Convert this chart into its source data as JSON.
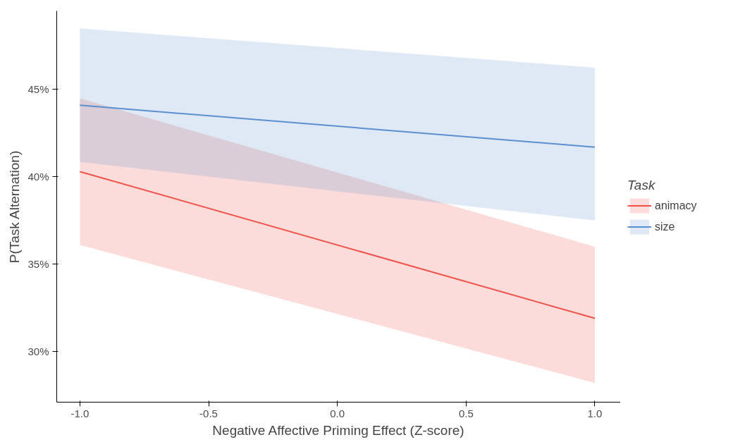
{
  "chart_data": {
    "type": "line",
    "xlabel": "Negative Affective Priming Effect (Z-score)",
    "ylabel": "P(Task Alternation)",
    "legend_title": "Task",
    "legend": "right",
    "grid": false,
    "x": [
      -1,
      1
    ],
    "xlim": [
      -1.09,
      1.1
    ],
    "ylim": [
      27.1,
      49.5
    ],
    "xticks": [
      {
        "value": -1,
        "label": "-1.0"
      },
      {
        "value": -0.5,
        "label": "-0.5"
      },
      {
        "value": 0,
        "label": "0.0"
      },
      {
        "value": 0.5,
        "label": "0.5"
      },
      {
        "value": 1,
        "label": "1.0"
      }
    ],
    "yticks": [
      {
        "value": 30,
        "label": "30%"
      },
      {
        "value": 35,
        "label": "35%"
      },
      {
        "value": 40,
        "label": "40%"
      },
      {
        "value": 45,
        "label": "45%"
      }
    ],
    "series": [
      {
        "name": "animacy",
        "color": "#f0524b",
        "values": [
          40.3,
          31.9
        ],
        "lower": [
          36.1,
          28.2
        ],
        "upper": [
          44.5,
          36.0
        ]
      },
      {
        "name": "size",
        "color": "#5b8fcf",
        "values": [
          44.1,
          41.7
        ],
        "lower": [
          40.85,
          37.5
        ],
        "upper": [
          48.5,
          46.25
        ]
      }
    ]
  }
}
